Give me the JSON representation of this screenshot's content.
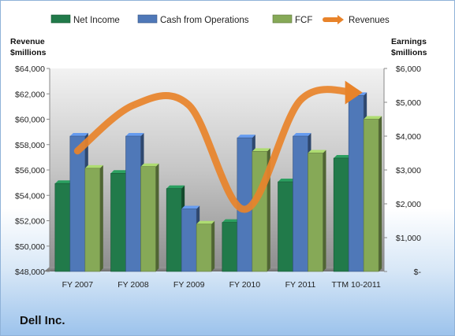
{
  "company": "Dell Inc.",
  "chart_data": {
    "type": "bar",
    "categories": [
      "FY 2007",
      "FY 2008",
      "FY 2009",
      "FY 2010",
      "FY 2011",
      "TTM 10-2011"
    ],
    "left_axis_title": [
      "Revenue",
      "$millions"
    ],
    "right_axis_title": [
      "Earnings",
      "$millions"
    ],
    "left_ylim": [
      48000,
      64000
    ],
    "right_ylim": [
      0,
      6000
    ],
    "left_ticks": [
      "$48,000",
      "$50,000",
      "$52,000",
      "$54,000",
      "$56,000",
      "$58,000",
      "$60,000",
      "$62,000",
      "$64,000"
    ],
    "right_ticks": [
      "$-",
      "$1,000",
      "$2,000",
      "$3,000",
      "$4,000",
      "$5,000",
      "$6,000"
    ],
    "legend_position": "top",
    "grid": false,
    "series": [
      {
        "name": "Net Income",
        "axis": "right",
        "color": "#217a4a",
        "values": [
          2600,
          2900,
          2450,
          1450,
          2650,
          3350
        ]
      },
      {
        "name": "Cash from Operations",
        "axis": "right",
        "color": "#4f78b8",
        "values": [
          4000,
          4000,
          1850,
          3950,
          4000,
          5200
        ]
      },
      {
        "name": "FCF",
        "axis": "right",
        "color": "#86a957",
        "values": [
          3050,
          3100,
          1400,
          3550,
          3500,
          4500
        ]
      },
      {
        "name": "Revenues",
        "axis": "left",
        "type": "line",
        "color": "#e8832a",
        "values": [
          57500,
          61100,
          61100,
          52900,
          61500,
          62100
        ]
      }
    ]
  }
}
